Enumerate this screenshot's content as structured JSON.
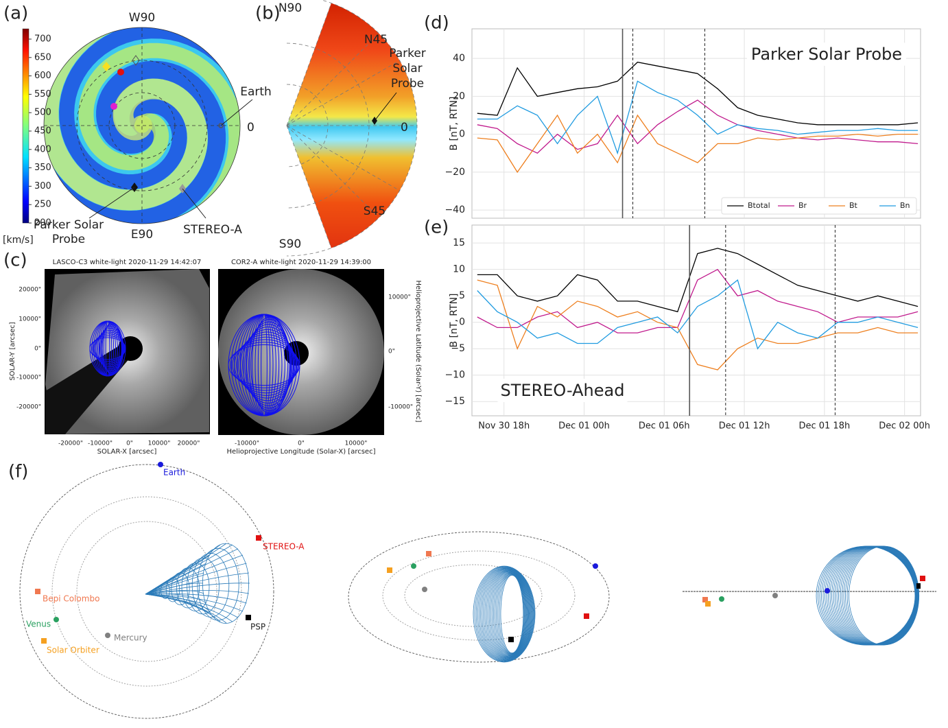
{
  "panels": {
    "a": {
      "label": "(a)",
      "compass": {
        "top": "W90",
        "bottom": "E90",
        "right": "0"
      },
      "bodies": {
        "earth": "Earth",
        "psp": [
          "Parker Solar",
          "Probe"
        ],
        "stereo": "STEREO-A"
      },
      "colorbar": {
        "ylim": [
          200,
          728
        ],
        "yticks": [
          200,
          250,
          300,
          350,
          400,
          450,
          500,
          550,
          600,
          650,
          700
        ],
        "label": "[km/s]"
      }
    },
    "b": {
      "label": "(b)",
      "angles": {
        "n90": "N90",
        "n45": "N45",
        "zero": "0",
        "s45": "S45",
        "s90": "S90"
      },
      "body": [
        "Parker",
        "Solar",
        "Probe"
      ]
    },
    "c": {
      "label": "(c)",
      "lasco": {
        "title": "LASCO-C3 white-light 2020-11-29 14:42:07",
        "xlabel": "SOLAR-X [arcsec]",
        "ylabel": "SOLAR-Y [arcsec]",
        "xticks": [
          "-20000\"",
          "-10000\"",
          "0\"",
          "10000\"",
          "20000\""
        ],
        "yticks": [
          "20000\"",
          "10000\"",
          "0\"",
          "-10000\"",
          "-20000\""
        ]
      },
      "cor2": {
        "title": "COR2-A white-light 2020-11-29 14:39:00",
        "xlabel": "Helioprojective Longitude (Solar-X) [arcsec]",
        "ylabel": "Helioprojective Latitude (Solar-Y) [arcsec]",
        "xticks": [
          "-10000\"",
          "0\"",
          "10000\""
        ],
        "yticks": [
          "10000\"",
          "0\"",
          "-10000\""
        ]
      }
    },
    "f": {
      "label": "(f)",
      "bodies": {
        "earth": "Earth",
        "stereo": "STEREO-A",
        "bepi": "Bepi Colombo",
        "venus": "Venus",
        "solo": "Solar Orbiter",
        "mercury": "Mercury",
        "psp": "PSP"
      }
    }
  },
  "chart_data": [
    {
      "type": "line",
      "panel_label": "(d)",
      "annotation": "Parker Solar Probe",
      "ylabel": "B [nT, RTN]",
      "x": [
        16,
        17.5,
        19,
        20.5,
        22,
        23.5,
        25,
        26.5,
        28,
        29.5,
        31,
        32.5,
        34,
        35.5,
        37,
        38.5,
        40,
        41.5,
        43,
        44.5,
        46,
        47.5,
        49
      ],
      "xlim": [
        15.6,
        49.2
      ],
      "xticks": [
        18,
        24,
        30,
        36,
        42,
        48
      ],
      "ylim": [
        -44.3,
        55.6
      ],
      "yticks": [
        {
          "value": -40,
          "label": "−40"
        },
        {
          "value": -20,
          "label": "−20"
        },
        0,
        20,
        40
      ],
      "grid": true,
      "legend": "lower right",
      "vlines": [
        {
          "x": 26.88,
          "style": "solid"
        },
        {
          "x": 27.65,
          "style": "dashed"
        },
        {
          "x": 33.04,
          "style": "dashed"
        }
      ],
      "series": [
        {
          "name": "Btotal",
          "color": "#000000",
          "values": [
            11,
            10,
            35,
            20,
            22,
            24,
            25,
            28,
            38,
            36,
            34,
            32,
            24,
            14,
            10,
            8,
            6,
            5,
            5,
            5,
            5,
            5,
            6
          ]
        },
        {
          "name": "Br",
          "color": "#c0198c",
          "values": [
            5,
            3,
            -5,
            -10,
            0,
            -8,
            -5,
            10,
            -5,
            5,
            12,
            18,
            10,
            5,
            2,
            0,
            -2,
            -3,
            -2,
            -3,
            -4,
            -4,
            -5
          ]
        },
        {
          "name": "Bt",
          "color": "#ee7f1e",
          "values": [
            -2,
            -3,
            -20,
            -5,
            10,
            -10,
            0,
            -15,
            10,
            -5,
            -10,
            -15,
            -5,
            -5,
            -2,
            -3,
            -2,
            -1,
            -1,
            0,
            -1,
            0,
            0
          ]
        },
        {
          "name": "Bn",
          "color": "#1f9be0",
          "values": [
            8,
            8,
            15,
            10,
            -5,
            10,
            20,
            -10,
            28,
            22,
            18,
            10,
            0,
            5,
            3,
            2,
            0,
            1,
            2,
            2,
            3,
            2,
            2
          ]
        }
      ]
    },
    {
      "type": "line",
      "panel_label": "(e)",
      "annotation": "STEREO-Ahead",
      "ylabel": "B [nT, RTN]",
      "x": [
        16,
        17.5,
        19,
        20.5,
        22,
        23.5,
        25,
        26.5,
        28,
        29.5,
        31,
        32.5,
        34,
        35.5,
        37,
        38.5,
        40,
        41.5,
        43,
        44.5,
        46,
        47.5,
        49
      ],
      "xlim": [
        15.6,
        49.2
      ],
      "xticks": [
        {
          "value": 18,
          "label": "Nov 30 18h"
        },
        {
          "value": 24,
          "label": "Dec 01 00h"
        },
        {
          "value": 30,
          "label": "Dec 01 06h"
        },
        {
          "value": 36,
          "label": "Dec 01 12h"
        },
        {
          "value": 42,
          "label": "Dec 01 18h"
        },
        {
          "value": 48,
          "label": "Dec 02 00h"
        }
      ],
      "ylim": [
        -17.7,
        18.4
      ],
      "yticks": [
        {
          "value": -15,
          "label": "−15"
        },
        {
          "value": -10,
          "label": "−10"
        },
        {
          "value": -5,
          "label": "−5"
        },
        0,
        5,
        10,
        15
      ],
      "grid": true,
      "vlines": [
        {
          "x": 31.9,
          "style": "solid"
        },
        {
          "x": 34.6,
          "style": "dashed"
        },
        {
          "x": 42.8,
          "style": "dashed"
        }
      ],
      "series": [
        {
          "color": "#000000",
          "values": [
            9,
            9,
            5,
            4,
            5,
            9,
            8,
            4,
            4,
            3,
            2,
            13,
            14,
            13,
            11,
            9,
            7,
            6,
            5,
            4,
            5,
            4,
            3
          ]
        },
        {
          "color": "#c0198c",
          "values": [
            1,
            -1,
            -1,
            1,
            2,
            -1,
            0,
            -2,
            -2,
            -1,
            -1,
            8,
            10,
            5,
            6,
            4,
            3,
            2,
            0,
            1,
            1,
            1,
            2
          ]
        },
        {
          "color": "#ee7f1e",
          "values": [
            8,
            7,
            -5,
            3,
            1,
            4,
            3,
            1,
            2,
            0,
            -1,
            -8,
            -9,
            -5,
            -3,
            -4,
            -4,
            -3,
            -2,
            -2,
            -1,
            -2,
            -2
          ]
        },
        {
          "color": "#1f9be0",
          "values": [
            6,
            2,
            0,
            -3,
            -2,
            -4,
            -4,
            -1,
            0,
            1,
            -2,
            3,
            5,
            8,
            -5,
            0,
            -2,
            -3,
            0,
            0,
            1,
            0,
            -1
          ]
        }
      ]
    }
  ]
}
